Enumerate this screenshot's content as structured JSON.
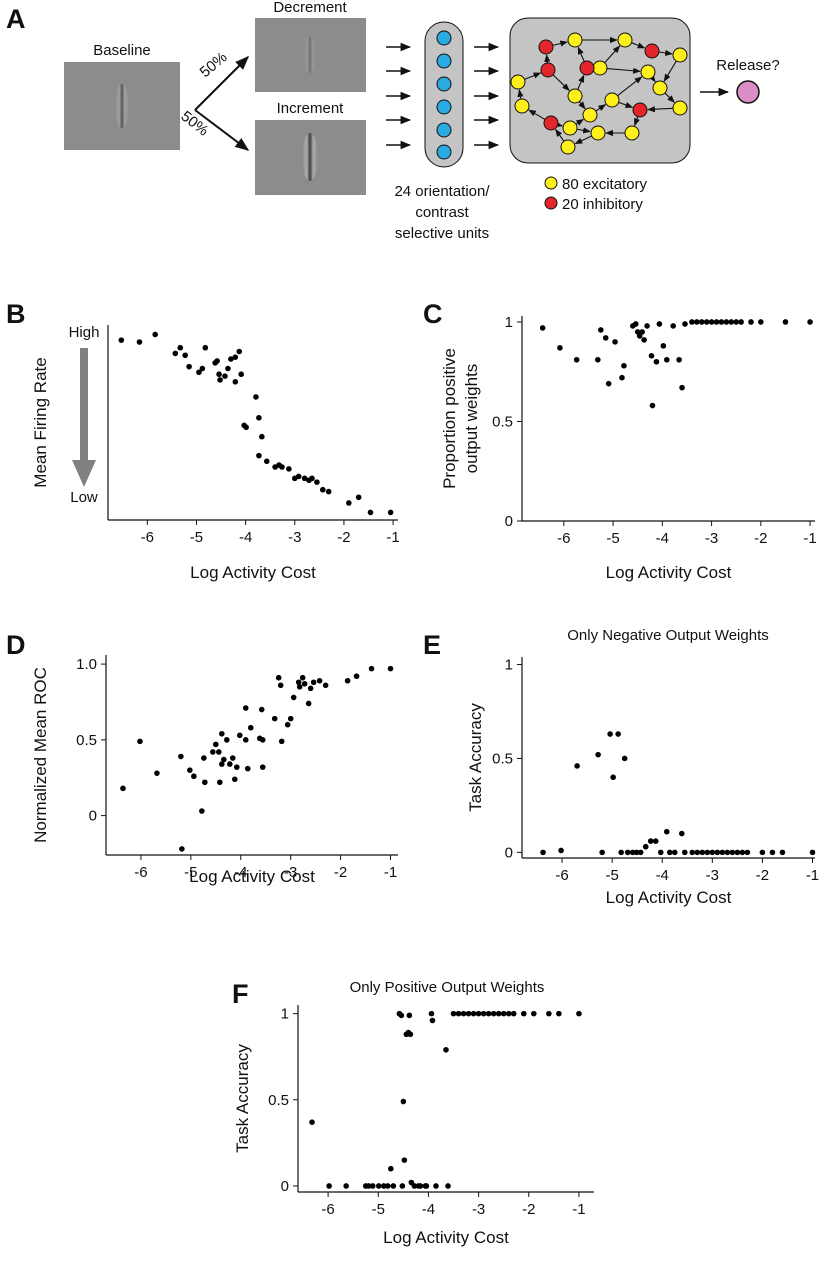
{
  "diagram": {
    "label": "A",
    "images": [
      "Baseline",
      "Decrement",
      "Increment"
    ],
    "split": [
      "50%",
      "50%"
    ],
    "units_label": [
      "24 orientation/",
      "contrast",
      "selective units"
    ],
    "legend": [
      "80 excitatory",
      "20 inhibitory"
    ],
    "output": "Release?"
  },
  "chart_data": [
    {
      "type": "scatter",
      "label": "B",
      "xlabel": "Log Activity Cost",
      "ylabel": [
        "Mean Firing Rate"
      ],
      "annotations": [
        "High",
        "Low"
      ],
      "color": "#000000",
      "x": [
        -6.53,
        -6.16,
        -5.84,
        -5.43,
        -5.33,
        -5.23,
        -5.15,
        -4.95,
        -4.88,
        -4.82,
        -4.62,
        -4.58,
        -4.54,
        -4.52,
        -4.42,
        -4.36,
        -4.3,
        -4.21,
        -4.13,
        -4.09,
        -4.21,
        -4.03,
        -3.99,
        -3.79,
        -3.73,
        -3.67,
        -3.73,
        -3.57,
        -3.4,
        -3.32,
        -3.26,
        -3.12,
        -3.0,
        -2.92,
        -2.8,
        -2.71,
        -2.65,
        -2.55,
        -2.43,
        -2.31,
        -1.9,
        -1.7,
        -1.46,
        -1.05
      ],
      "values": [
        0.92,
        0.91,
        0.95,
        0.85,
        0.88,
        0.84,
        0.78,
        0.75,
        0.77,
        0.88,
        0.8,
        0.81,
        0.74,
        0.71,
        0.73,
        0.77,
        0.82,
        0.83,
        0.86,
        0.74,
        0.7,
        0.47,
        0.46,
        0.62,
        0.51,
        0.41,
        0.31,
        0.28,
        0.25,
        0.26,
        0.25,
        0.24,
        0.19,
        0.2,
        0.19,
        0.18,
        0.19,
        0.17,
        0.13,
        0.12,
        0.06,
        0.09,
        0.01,
        0.01
      ],
      "xlim": [
        -6.8,
        -0.9
      ],
      "ylim": [
        -0.03,
        1
      ],
      "xticks": [
        -6,
        -5,
        -4,
        -3,
        -2,
        -1
      ],
      "yticks": []
    },
    {
      "type": "scatter",
      "label": "C",
      "xlabel": "Log Activity Cost",
      "ylabel": [
        "Proportion positive",
        "output weights"
      ],
      "color": "#000000",
      "x": [
        -6.43,
        -6.08,
        -5.74,
        -5.31,
        -5.25,
        -5.15,
        -5.09,
        -4.96,
        -4.82,
        -4.78,
        -4.6,
        -4.54,
        -4.5,
        -4.46,
        -4.41,
        -4.37,
        -4.31,
        -4.22,
        -4.2,
        -4.12,
        -4.06,
        -3.98,
        -3.91,
        -3.78,
        -3.66,
        -3.6,
        -3.54,
        -3.4,
        -3.3,
        -3.2,
        -3.1,
        -3.0,
        -2.9,
        -2.8,
        -2.7,
        -2.6,
        -2.5,
        -2.4,
        -2.2,
        -2.0,
        -1.5,
        -1.0
      ],
      "values": [
        0.97,
        0.87,
        0.81,
        0.81,
        0.96,
        0.92,
        0.69,
        0.9,
        0.72,
        0.78,
        0.98,
        0.99,
        0.95,
        0.93,
        0.95,
        0.91,
        0.98,
        0.83,
        0.58,
        0.8,
        0.99,
        0.88,
        0.81,
        0.98,
        0.81,
        0.67,
        0.99,
        1,
        1,
        1,
        1,
        1,
        1,
        1,
        1,
        1,
        1,
        1,
        1,
        1,
        1,
        1
      ],
      "xlim": [
        -6.85,
        -0.9
      ],
      "ylim": [
        0,
        1.03
      ],
      "xticks": [
        -6,
        -5,
        -4,
        -3,
        -2,
        -1
      ],
      "yticks": [
        0,
        0.5,
        1
      ]
    },
    {
      "type": "scatter",
      "label": "D",
      "xlabel": "Log Activity Cost",
      "ylabel": [
        "Normalized Mean ROC"
      ],
      "color": "#000000",
      "x": [
        -6.36,
        -6.02,
        -5.68,
        -5.2,
        -5.18,
        -5.02,
        -4.94,
        -4.78,
        -4.74,
        -4.72,
        -4.56,
        -4.5,
        -4.44,
        -4.42,
        -4.38,
        -4.38,
        -4.34,
        -4.28,
        -4.22,
        -4.16,
        -4.12,
        -4.08,
        -4.02,
        -3.9,
        -3.9,
        -3.86,
        -3.8,
        -3.62,
        -3.56,
        -3.56,
        -3.58,
        -3.32,
        -3.24,
        -3.2,
        -3.18,
        -3.06,
        -3.0,
        -2.94,
        -2.84,
        -2.82,
        -2.76,
        -2.72,
        -2.64,
        -2.6,
        -2.54,
        -2.42,
        -2.3,
        -1.86,
        -1.68,
        -1.38,
        -1.0
      ],
      "values": [
        0.18,
        0.49,
        0.28,
        0.39,
        -0.22,
        0.3,
        0.26,
        0.03,
        0.38,
        0.22,
        0.42,
        0.47,
        0.42,
        0.22,
        0.34,
        0.54,
        0.37,
        0.5,
        0.34,
        0.38,
        0.24,
        0.32,
        0.53,
        0.71,
        0.5,
        0.31,
        0.58,
        0.51,
        0.32,
        0.5,
        0.7,
        0.64,
        0.91,
        0.86,
        0.49,
        0.6,
        0.64,
        0.78,
        0.88,
        0.85,
        0.91,
        0.87,
        0.74,
        0.84,
        0.88,
        0.89,
        0.86,
        0.89,
        0.92,
        0.97,
        0.97
      ],
      "xlim": [
        -6.7,
        -0.85
      ],
      "ylim": [
        -0.26,
        1.06
      ],
      "xticks": [
        -6,
        -5,
        -4,
        -3,
        -2,
        -1
      ],
      "yticks": [
        0,
        0.5,
        {
          "value": 1,
          "label": "1.0"
        }
      ]
    },
    {
      "type": "scatter",
      "label": "E",
      "title": "Only Negative Output Weights",
      "xlabel": "Log Activity Cost",
      "ylabel": [
        "Task Accuracy"
      ],
      "color": "#000000",
      "x": [
        -6.38,
        -6.02,
        -5.7,
        -5.28,
        -5.2,
        -5.04,
        -4.98,
        -4.88,
        -4.82,
        -4.75,
        -4.69,
        -4.59,
        -4.51,
        -4.43,
        -4.33,
        -4.23,
        -4.13,
        -4.03,
        -3.91,
        -3.85,
        -3.75,
        -3.61,
        -3.55,
        -3.4,
        -3.3,
        -3.2,
        -3.1,
        -3.0,
        -2.9,
        -2.8,
        -2.7,
        -2.6,
        -2.5,
        -2.4,
        -2.3,
        -2.0,
        -1.8,
        -1.6,
        -1.0
      ],
      "values": [
        0,
        0.01,
        0.46,
        0.52,
        0,
        0.63,
        0.4,
        0.63,
        0,
        0.5,
        0,
        0,
        0,
        0,
        0.03,
        0.06,
        0.06,
        0,
        0.11,
        0,
        0,
        0.1,
        0,
        0,
        0,
        0,
        0,
        0,
        0,
        0,
        0,
        0,
        0,
        0,
        0,
        0,
        0,
        0,
        0
      ],
      "xlim": [
        -6.8,
        -0.95
      ],
      "ylim": [
        -0.03,
        1.04
      ],
      "xticks": [
        -6,
        -5,
        -4,
        -3,
        -2,
        -1
      ],
      "yticks": [
        0,
        0.5,
        1
      ]
    },
    {
      "type": "scatter",
      "label": "F",
      "title": "Only Positive Output Weights",
      "xlabel": "Log Activity Cost",
      "ylabel": [
        "Task Accuracy"
      ],
      "color": "#000000",
      "x": [
        -6.32,
        -5.98,
        -5.64,
        -5.25,
        -5.19,
        -5.11,
        -4.99,
        -4.89,
        -4.81,
        -4.75,
        -4.7,
        -4.58,
        -4.54,
        -4.52,
        -4.5,
        -4.48,
        -4.44,
        -4.4,
        -4.36,
        -4.38,
        -4.34,
        -4.28,
        -4.2,
        -4.16,
        -4.06,
        -4.04,
        -3.94,
        -3.92,
        -3.85,
        -3.65,
        -3.61,
        -3.5,
        -3.4,
        -3.3,
        -3.2,
        -3.1,
        -3.0,
        -2.9,
        -2.8,
        -2.7,
        -2.6,
        -2.5,
        -2.4,
        -2.3,
        -2.1,
        -1.9,
        -1.6,
        -1.4,
        -1.0
      ],
      "values": [
        0.37,
        0,
        0,
        0,
        0,
        0,
        0,
        0,
        0,
        0.1,
        0,
        1,
        0.99,
        0,
        0.49,
        0.15,
        0.88,
        0.89,
        0.88,
        0.99,
        0.02,
        0,
        0,
        0,
        0,
        0,
        1,
        0.96,
        0,
        0.79,
        0,
        1,
        1,
        1,
        1,
        1,
        1,
        1,
        1,
        1,
        1,
        1,
        1,
        1,
        1,
        1,
        1,
        1,
        1
      ],
      "xlim": [
        -6.6,
        -0.7
      ],
      "ylim": [
        -0.035,
        1.05
      ],
      "xticks": [
        -6,
        -5,
        -4,
        -3,
        -2,
        -1
      ],
      "yticks": [
        0,
        0.5,
        1
      ]
    }
  ]
}
